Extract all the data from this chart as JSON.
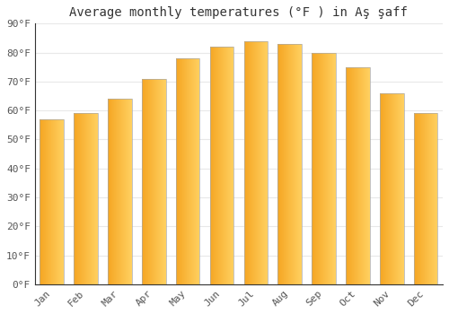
{
  "title": "Average monthly temperatures (°F ) in Aş şaff",
  "months": [
    "Jan",
    "Feb",
    "Mar",
    "Apr",
    "May",
    "Jun",
    "Jul",
    "Aug",
    "Sep",
    "Oct",
    "Nov",
    "Dec"
  ],
  "values": [
    57,
    59,
    64,
    71,
    78,
    82,
    84,
    83,
    80,
    75,
    66,
    59
  ],
  "ylim": [
    0,
    90
  ],
  "yticks": [
    0,
    10,
    20,
    30,
    40,
    50,
    60,
    70,
    80,
    90
  ],
  "ytick_labels": [
    "0°F",
    "10°F",
    "20°F",
    "30°F",
    "40°F",
    "50°F",
    "60°F",
    "70°F",
    "80°F",
    "90°F"
  ],
  "background_color": "#ffffff",
  "grid_color": "#e8e8e8",
  "bar_color_left": "#F5A623",
  "bar_color_right": "#FFD060",
  "bar_border_color": "#aaaaaa",
  "title_fontsize": 10,
  "tick_fontsize": 8,
  "bar_width": 0.7
}
